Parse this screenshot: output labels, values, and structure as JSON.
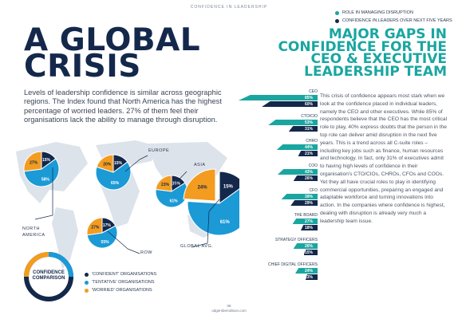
{
  "header": {
    "label": "CONFIDENCE IN LEADERSHIP"
  },
  "left": {
    "title_line1": "A GLOBAL",
    "title_line2": "CRISIS",
    "subtitle": "Levels of leadership confidence is similar across geographic regions. The Index found that North America has the highest percentage of worried leaders. 27% of them feel their organisations lack the ability to manage through disruption."
  },
  "right": {
    "title_line1": "MAJOR GAPS IN",
    "title_line2": "CONFIDENCE FOR THE",
    "title_line3": "CEO & EXECUTIVE",
    "title_line4": "LEADERSHIP TEAM",
    "body": "This crisis of confidence appears most stark when we look at the confidence placed in individual leaders, namely the CEO and other executives. While 85% of respondents believe that the CEO has the most critical role to play, 40% express doubts that the person in the top role can deliver amid disruption in the next five years. This is a trend across all C-suite roles – including key jobs such as finance, human resources and technology. In fact, only 31% of executives admit to having high levels of confidence in their organisation's CTO/CIOs, CHROs, CFOs and COOs. Yet they all have crucial roles to play in identifying commercial opportunities, preparing an engaged and adaptable workforce and turning innovations into action. In the companies where confidence is highest, dealing with disruption is already very much a leadership team issue."
  },
  "top_legend": {
    "role": "ROLE IN MANAGING DISRUPTION",
    "confidence": "CONFIDENCE IN LEADERS OVER NEXT FIVE YEARS"
  },
  "bottom_legend": {
    "title_line1": "CONFIDENCE",
    "title_line2": "COMPARISON",
    "confident": "'CONFIDENT' ORGANISATIONS",
    "tentative": "'TENTATIVE' ORGANISATIONS",
    "worried": "'WORRIED' ORGANISATIONS"
  },
  "colors": {
    "navy": "#14284b",
    "blue": "#1b9ad6",
    "orange": "#f39c1f",
    "teal": "#1aa6a0",
    "map": "#dde3ea"
  },
  "regions": {
    "north_america": "NORTH AMERICA",
    "europe": "EUROPE",
    "asia": "ASIA",
    "row": "ROW",
    "global": "GLOBAL AVG."
  },
  "chart_data": [
    {
      "type": "pie",
      "title": "NORTH AMERICA",
      "labels": [
        "CONFIDENT",
        "TENTATIVE",
        "WORRIED"
      ],
      "values": [
        15,
        58,
        27
      ]
    },
    {
      "type": "pie",
      "title": "EUROPE",
      "labels": [
        "CONFIDENT",
        "TENTATIVE",
        "WORRIED"
      ],
      "values": [
        15,
        65,
        20
      ]
    },
    {
      "type": "pie",
      "title": "ASIA",
      "labels": [
        "CONFIDENT",
        "TENTATIVE",
        "WORRIED"
      ],
      "values": [
        16,
        61,
        23
      ]
    },
    {
      "type": "pie",
      "title": "ROW",
      "labels": [
        "CONFIDENT",
        "TENTATIVE",
        "WORRIED"
      ],
      "values": [
        17,
        55,
        27
      ]
    },
    {
      "type": "pie",
      "title": "GLOBAL AVG.",
      "labels": [
        "CONFIDENT",
        "TENTATIVE",
        "WORRIED"
      ],
      "values": [
        15,
        61,
        24
      ]
    },
    {
      "type": "bar",
      "categories": [
        "CEO",
        "CTO/CIO",
        "CHRO",
        "COO",
        "CFO",
        "THE BOARD",
        "STRATEGY OFFICERS",
        "CHIEF DIGITAL OFFICERS"
      ],
      "series": [
        {
          "name": "ROLE IN MANAGING DISRUPTION",
          "values": [
            85,
            53,
            44,
            43,
            39,
            27,
            26,
            24
          ]
        },
        {
          "name": "CONFIDENCE IN LEADERS OVER NEXT FIVE YEARS",
          "values": [
            60,
            31,
            21,
            26,
            29,
            18,
            15,
            13
          ]
        }
      ]
    }
  ],
  "footer": {
    "page": "08",
    "site": "odgersberndtson.com"
  }
}
